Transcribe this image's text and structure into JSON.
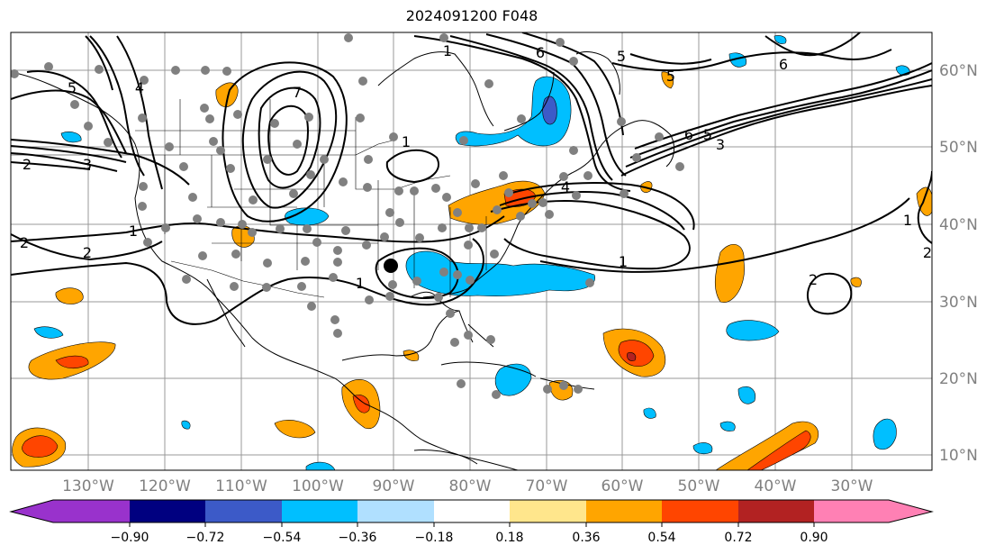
{
  "title": "2024091200 F048",
  "lon_labels": [
    "130°W",
    "120°W",
    "110°W",
    "100°W",
    "90°W",
    "80°W",
    "70°W",
    "60°W",
    "50°W",
    "40°W",
    "30°W"
  ],
  "lat_labels": [
    "60°N",
    "50°N",
    "40°N",
    "30°N",
    "20°N",
    "10°N"
  ],
  "colorbar": {
    "colors": [
      "#9932cc",
      "#000080",
      "#3c5ac8",
      "#00bfff",
      "#b0e0ff",
      "#ffffff",
      "#ffe68c",
      "#ffa500",
      "#ff4500",
      "#b22222",
      "#ff80b4"
    ],
    "ticks": [
      "−0.90",
      "−0.72",
      "−0.54",
      "−0.36",
      "−0.18",
      "0.18",
      "0.36",
      "0.54",
      "0.72",
      "0.90"
    ]
  },
  "contour_labels": {
    "west_coast": [
      "2",
      "3",
      "5",
      "4",
      "2",
      "2",
      "1"
    ],
    "central": [
      "1",
      "1",
      "7"
    ],
    "north": [
      "5",
      "6",
      "5",
      "6",
      "6",
      "5",
      "3",
      "4"
    ],
    "east": [
      "1",
      "1",
      "2",
      "2",
      "1"
    ]
  }
}
